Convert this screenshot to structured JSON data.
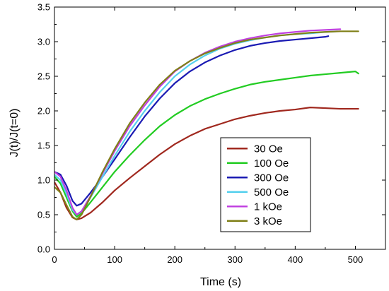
{
  "chart_data": {
    "type": "line",
    "xlabel": "Time (s)",
    "ylabel": "J(t)/J(t=0)",
    "xlim": [
      0,
      550
    ],
    "ylim": [
      0.0,
      3.5
    ],
    "x_ticks": [
      0,
      100,
      200,
      300,
      400,
      500
    ],
    "x_tick_labels": [
      "0",
      "100",
      "200",
      "300",
      "400",
      "500"
    ],
    "y_ticks": [
      0.0,
      0.5,
      1.0,
      1.5,
      2.0,
      2.5,
      3.0,
      3.5
    ],
    "y_tick_labels": [
      "0.0",
      "0.5",
      "1.0",
      "1.5",
      "2.0",
      "2.5",
      "3.0",
      "3.5"
    ],
    "grid": false,
    "legend_position": "lower-right",
    "series": [
      {
        "name": "30 Oe",
        "color": "#a0281e",
        "x": [
          0,
          10,
          20,
          30,
          37,
          45,
          60,
          80,
          100,
          125,
          150,
          175,
          200,
          225,
          250,
          275,
          300,
          325,
          350,
          375,
          400,
          425,
          450,
          475,
          505
        ],
        "y": [
          0.97,
          0.82,
          0.6,
          0.46,
          0.43,
          0.45,
          0.53,
          0.68,
          0.85,
          1.03,
          1.2,
          1.37,
          1.52,
          1.64,
          1.74,
          1.81,
          1.88,
          1.93,
          1.97,
          2.0,
          2.02,
          2.05,
          2.04,
          2.03,
          2.03
        ]
      },
      {
        "name": "100 Oe",
        "color": "#22cc22",
        "x": [
          0,
          10,
          20,
          30,
          37,
          45,
          60,
          80,
          100,
          125,
          150,
          175,
          200,
          225,
          250,
          275,
          300,
          325,
          350,
          375,
          400,
          425,
          450,
          475,
          500,
          505
        ],
        "y": [
          1.05,
          0.95,
          0.75,
          0.55,
          0.47,
          0.52,
          0.68,
          0.9,
          1.12,
          1.36,
          1.58,
          1.78,
          1.94,
          2.07,
          2.17,
          2.25,
          2.32,
          2.38,
          2.42,
          2.45,
          2.48,
          2.51,
          2.53,
          2.55,
          2.57,
          2.54
        ]
      },
      {
        "name": "300 Oe",
        "color": "#1a1ab3",
        "x": [
          0,
          10,
          20,
          30,
          37,
          45,
          60,
          80,
          100,
          125,
          150,
          175,
          200,
          225,
          250,
          275,
          300,
          325,
          350,
          375,
          400,
          425,
          450,
          455
        ],
        "y": [
          1.12,
          1.08,
          0.92,
          0.7,
          0.63,
          0.66,
          0.82,
          1.05,
          1.3,
          1.62,
          1.92,
          2.18,
          2.4,
          2.57,
          2.7,
          2.8,
          2.88,
          2.94,
          2.98,
          3.01,
          3.03,
          3.05,
          3.07,
          3.08
        ]
      },
      {
        "name": "500 Oe",
        "color": "#55d0ee",
        "x": [
          0,
          10,
          20,
          30,
          37,
          45,
          60,
          80,
          100,
          125,
          150,
          175,
          200,
          225,
          250,
          275,
          300,
          325,
          350,
          375,
          400,
          425,
          450,
          470
        ],
        "y": [
          1.08,
          1.0,
          0.8,
          0.57,
          0.5,
          0.55,
          0.75,
          1.05,
          1.35,
          1.7,
          2.0,
          2.27,
          2.5,
          2.67,
          2.8,
          2.9,
          2.97,
          3.02,
          3.06,
          3.09,
          3.11,
          3.12,
          3.14,
          3.15
        ]
      },
      {
        "name": "1 kOe",
        "color": "#c040e0",
        "x": [
          0,
          10,
          20,
          30,
          37,
          45,
          60,
          80,
          100,
          125,
          150,
          175,
          200,
          225,
          250,
          275,
          300,
          325,
          350,
          375,
          400,
          425,
          450,
          475
        ],
        "y": [
          1.12,
          1.05,
          0.85,
          0.6,
          0.5,
          0.55,
          0.77,
          1.1,
          1.42,
          1.78,
          2.08,
          2.35,
          2.57,
          2.72,
          2.84,
          2.93,
          3.0,
          3.05,
          3.09,
          3.12,
          3.14,
          3.16,
          3.17,
          3.18
        ]
      },
      {
        "name": "3 kOe",
        "color": "#808018",
        "x": [
          0,
          10,
          20,
          30,
          37,
          45,
          60,
          80,
          100,
          125,
          150,
          175,
          200,
          225,
          250,
          275,
          300,
          325,
          350,
          375,
          400,
          425,
          450,
          475,
          505
        ],
        "y": [
          0.9,
          0.82,
          0.64,
          0.47,
          0.43,
          0.5,
          0.76,
          1.12,
          1.45,
          1.82,
          2.12,
          2.38,
          2.58,
          2.72,
          2.83,
          2.91,
          2.98,
          3.03,
          3.06,
          3.09,
          3.11,
          3.13,
          3.14,
          3.15,
          3.15
        ]
      }
    ]
  }
}
